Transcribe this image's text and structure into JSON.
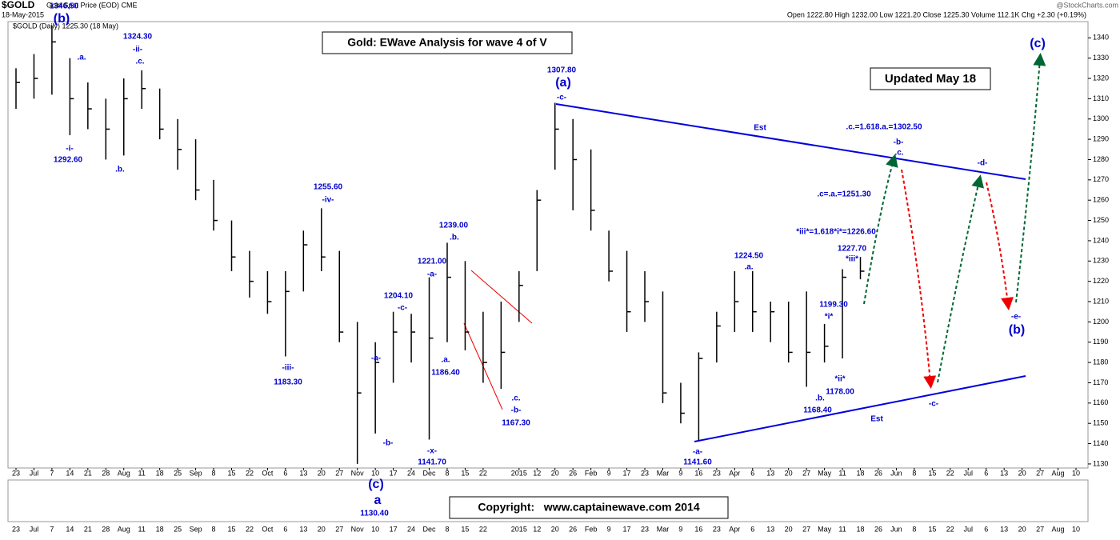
{
  "chart_data": {
    "type": "ohlc",
    "symbol": "$GOLD",
    "source": "Gold Spot Price (EOD) CME",
    "date": "18-May-2015",
    "quote": "Open 1222.80  High 1232.00  Low 1221.20  Close 1225.30  Volume 112.1K  Chg +2.30 (+0.19%)",
    "watermark": "@StockCharts.com",
    "legend": "$GOLD (Daily) 1225.30 (18 May)",
    "title": "Gold: EWave Analysis for wave 4 of V",
    "subtitle": "Updated May 18",
    "copyright": "Copyright:   www.captainewave.com 2014",
    "color": "#000000",
    "categories": [
      "23",
      "Jul",
      "7",
      "14",
      "21",
      "28",
      "Aug",
      "11",
      "18",
      "25",
      "Sep",
      "8",
      "15",
      "22",
      "Oct",
      "6",
      "13",
      "20",
      "27",
      "Nov",
      "10",
      "17",
      "24",
      "Dec",
      "8",
      "15",
      "22",
      null,
      "2015",
      "12",
      "20",
      "26",
      "Feb",
      "9",
      "17",
      "23",
      "Mar",
      "9",
      "16",
      "23",
      "Apr",
      "6",
      "13",
      "20",
      "27",
      "May",
      "11",
      "18",
      "26",
      "Jun",
      "8",
      "15",
      "22",
      "Jul",
      "6",
      "13",
      "20",
      "27",
      "Aug",
      "10"
    ],
    "high": [
      1325,
      1332,
      1346,
      1330,
      1318,
      1310,
      1320,
      1324,
      1315,
      1300,
      1290,
      1270,
      1250,
      1235,
      1225,
      1225,
      1245,
      1256,
      1235,
      1200,
      1190,
      1205,
      1204,
      1222,
      1239,
      1230,
      1205,
      1210,
      1225,
      1265,
      1308,
      1300,
      1285,
      1245,
      1235,
      1225,
      1215,
      1170,
      1185,
      1205,
      1225,
      1225,
      1210,
      1210,
      1215,
      1199,
      1226,
      1232,
      null,
      null,
      null,
      null,
      null,
      null,
      null,
      null,
      null,
      null,
      null,
      null
    ],
    "low": [
      1305,
      1310,
      1312,
      1292,
      1295,
      1280,
      1282,
      1305,
      1290,
      1275,
      1260,
      1245,
      1225,
      1212,
      1204,
      1183,
      1215,
      1225,
      1190,
      1130,
      1145,
      1170,
      1180,
      1142,
      1190,
      1186,
      1170,
      1167,
      1200,
      1225,
      1275,
      1255,
      1245,
      1220,
      1195,
      1200,
      1160,
      1150,
      1141.6,
      1180,
      1195,
      1195,
      1190,
      1180,
      1168,
      1180,
      1182,
      1221,
      null,
      null,
      null,
      null,
      null,
      null,
      null,
      null,
      null,
      null,
      null,
      null
    ],
    "close": [
      1318,
      1320,
      1338,
      1310,
      1305,
      1295,
      1310,
      1315,
      1295,
      1285,
      1265,
      1250,
      1232,
      1220,
      1210,
      1215,
      1238,
      1232,
      1195,
      1165,
      1180,
      1195,
      1195,
      1192,
      1222,
      1195,
      1180,
      1185,
      1218,
      1260,
      1295,
      1280,
      1255,
      1225,
      1205,
      1210,
      1165,
      1155,
      1182,
      1198,
      1210,
      1205,
      1205,
      1185,
      1185,
      1188,
      1222,
      1225,
      null,
      null,
      null,
      null,
      null,
      null,
      null,
      null,
      null,
      null,
      null,
      null
    ],
    "ylim": [
      1128,
      1348
    ],
    "yticks": [
      1130,
      1140,
      1150,
      1160,
      1170,
      1180,
      1190,
      1200,
      1210,
      1220,
      1230,
      1240,
      1250,
      1260,
      1270,
      1280,
      1290,
      1300,
      1310,
      1320,
      1330,
      1340
    ],
    "annotations": [
      "1346.50",
      "(b)",
      ".a.",
      "1324.30",
      "-ii-",
      ".c.",
      "-i-",
      "1292.60",
      ".b.",
      "1255.60",
      "-iv-",
      "-iii-",
      "1183.30",
      "-a-",
      "-b-",
      "(c)",
      "a",
      "1130.40",
      "1204.10",
      "-c-",
      "1221.00",
      "-a-",
      ".a.",
      "1186.40",
      "-x-",
      "1141.70",
      "1239.00",
      ".b.",
      ".c.",
      "-b-",
      "1167.30",
      "1307.80",
      "(a)",
      "-c-",
      "Est",
      ".c.=1.618.a.=1302.50",
      "-b-",
      ".c.",
      "-d-",
      ".c=.a.=1251.30",
      "*iii*=1.618*i*=1226.60",
      "1224.50",
      ".a.",
      "1227.70",
      "*iii*",
      "1199.30",
      "*i*",
      "*ii*",
      "1178.00",
      ".b.",
      "1168.40",
      "-a-",
      "1141.60",
      "Est",
      "-c-",
      "(c)",
      "-e-",
      "(b)"
    ]
  }
}
